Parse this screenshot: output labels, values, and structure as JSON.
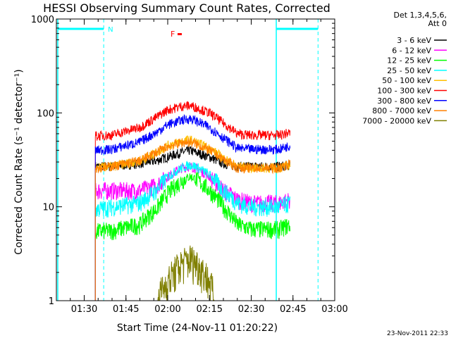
{
  "chart_data": {
    "type": "line",
    "title": "HESSI Observing Summary Count Rates, Corrected",
    "xlabel": "Start Time (24-Nov-11 01:20:22)",
    "ylabel": "Corrected Count Rate (s⁻¹ detector⁻¹)",
    "yscale": "log",
    "ylim": [
      1,
      1000
    ],
    "xlim": [
      "01:20",
      "03:00"
    ],
    "x_ticks": [
      "01:30",
      "01:45",
      "02:00",
      "02:15",
      "02:30",
      "02:45",
      "03:00"
    ],
    "y_ticks": [
      "1",
      "10",
      "100",
      "1000"
    ],
    "legend": {
      "placement": "right",
      "header": [
        "Det 1,3,4,5,6,",
        "Att 0"
      ]
    },
    "annotations": {
      "night_label": "N",
      "flare_label": "F",
      "footer": "23-Nov-2011 22:33"
    },
    "series": [
      {
        "name": "3 - 6 keV",
        "color": "#000000",
        "x": [
          "01:34",
          "01:40",
          "01:50",
          "01:56",
          "02:00",
          "02:05",
          "02:08",
          "02:10",
          "02:15",
          "02:20",
          "02:25",
          "02:30",
          "02:40",
          "02:44"
        ],
        "values": [
          27,
          27,
          29,
          31,
          34,
          38,
          40,
          38,
          34,
          29,
          27,
          27,
          27,
          28
        ]
      },
      {
        "name": "6 - 12 keV",
        "color": "#ff00ff",
        "x": [
          "01:34",
          "01:40",
          "01:50",
          "01:56",
          "02:00",
          "02:05",
          "02:08",
          "02:10",
          "02:15",
          "02:20",
          "02:25",
          "02:30",
          "02:40",
          "02:44"
        ],
        "values": [
          15,
          15,
          15,
          17,
          21,
          26,
          27,
          26,
          21,
          15,
          12,
          11,
          11,
          12
        ]
      },
      {
        "name": "12 - 25 keV",
        "color": "#00ff00",
        "x": [
          "01:34",
          "01:40",
          "01:50",
          "01:56",
          "02:00",
          "02:05",
          "02:08",
          "02:10",
          "02:15",
          "02:20",
          "02:25",
          "02:30",
          "02:40",
          "02:44"
        ],
        "values": [
          5.5,
          5.6,
          6.5,
          9.5,
          14,
          19,
          21,
          20,
          15,
          10,
          6.5,
          5.8,
          5.8,
          6.5
        ]
      },
      {
        "name": "25 - 50 keV",
        "color": "#00ffff",
        "x": [
          "01:34",
          "01:40",
          "01:50",
          "01:56",
          "02:00",
          "02:05",
          "02:08",
          "02:10",
          "02:15",
          "02:20",
          "02:25",
          "02:30",
          "02:40",
          "02:44"
        ],
        "values": [
          9.5,
          10,
          11,
          15,
          21,
          26,
          28,
          27,
          22,
          15,
          11,
          10,
          10,
          11
        ]
      },
      {
        "name": "50 - 100 keV",
        "color": "#ffbf00",
        "x": [
          "01:34",
          "01:40",
          "01:50",
          "01:56",
          "02:00",
          "02:05",
          "02:08",
          "02:10",
          "02:15",
          "02:20",
          "02:25",
          "02:30",
          "02:40",
          "02:44"
        ],
        "values": [
          26,
          27,
          31,
          38,
          45,
          50,
          52,
          49,
          42,
          33,
          27,
          26,
          26,
          28
        ]
      },
      {
        "name": "100 - 300 keV",
        "color": "#ff0000",
        "x": [
          "01:34",
          "01:40",
          "01:50",
          "01:56",
          "02:00",
          "02:05",
          "02:08",
          "02:10",
          "02:15",
          "02:20",
          "02:25",
          "02:30",
          "02:40",
          "02:44"
        ],
        "values": [
          57,
          58,
          70,
          90,
          108,
          118,
          120,
          115,
          100,
          78,
          60,
          58,
          58,
          62
        ]
      },
      {
        "name": "300 - 800 keV",
        "color": "#0000ff",
        "x": [
          "01:34",
          "01:40",
          "01:50",
          "01:56",
          "02:00",
          "02:05",
          "02:08",
          "02:10",
          "02:15",
          "02:20",
          "02:25",
          "02:30",
          "02:40",
          "02:44"
        ],
        "values": [
          40,
          41,
          49,
          62,
          75,
          84,
          87,
          83,
          70,
          54,
          42,
          41,
          41,
          45
        ]
      },
      {
        "name": "800 - 7000 keV",
        "color": "#ff8000",
        "x": [
          "01:34",
          "01:40",
          "01:50",
          "01:56",
          "02:00",
          "02:05",
          "02:08",
          "02:10",
          "02:15",
          "02:20",
          "02:25",
          "02:30",
          "02:40",
          "02:44"
        ],
        "values": [
          26,
          27,
          31,
          38,
          44,
          48,
          49,
          47,
          40,
          32,
          26,
          26,
          26,
          29
        ]
      },
      {
        "name": "7000 - 20000 keV",
        "color": "#7f7f00",
        "x": [
          "01:34",
          "01:50",
          "01:56",
          "02:00",
          "02:05",
          "02:08",
          "02:10",
          "02:15",
          "02:17",
          "02:25",
          "02:30",
          "02:40",
          "02:44"
        ],
        "values": [
          1,
          1,
          1,
          1.6,
          2.5,
          2.8,
          2.6,
          1.6,
          1,
          1,
          1,
          1,
          1
        ]
      }
    ]
  }
}
